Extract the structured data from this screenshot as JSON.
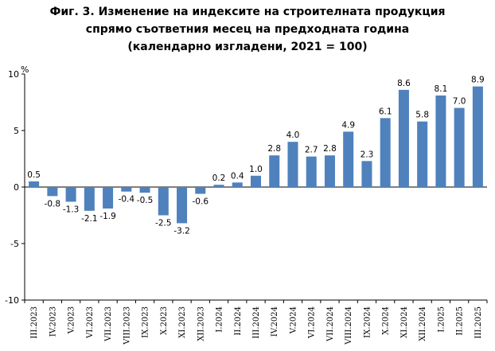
{
  "chart_data": {
    "type": "bar",
    "title_lines": [
      "Фиг. 3. Изменение на индексите на строителната продукция",
      "спрямо съответния месец на предходната година",
      "(календарно изгладени, 2021 = 100)"
    ],
    "ylabel": "%",
    "ylim": [
      -10,
      10
    ],
    "yticks": [
      "10",
      "5",
      "0",
      "-5",
      "-10"
    ],
    "ytick_values": [
      10,
      5,
      0,
      -5,
      -10
    ],
    "grid": false,
    "bar_color": "#4f81bd",
    "categories": [
      "III.2023",
      "IV.2023",
      "V.2023",
      "VI.2023",
      "VII.2023",
      "VIII.2023",
      "IX.2023",
      "X.2023",
      "XI.2023",
      "XII.2023",
      "I.2024",
      "II.2024",
      "III.2024",
      "IV.2024",
      "V.2024",
      "VI.2024",
      "VII.2024",
      "VIII.2024",
      "IX.2024",
      "X.2024",
      "XI.2024",
      "XII.2024",
      "I.2025",
      "II.2025",
      "III.2025"
    ],
    "values": [
      0.5,
      -0.8,
      -1.3,
      -2.1,
      -1.9,
      -0.4,
      -0.5,
      -2.5,
      -3.2,
      -0.6,
      0.2,
      0.4,
      1.0,
      2.8,
      4.0,
      2.7,
      2.8,
      4.9,
      2.3,
      6.1,
      8.6,
      5.8,
      8.1,
      7.0,
      8.9
    ],
    "data_labels": [
      "0.5",
      "-0.8",
      "-1.3",
      "-2.1",
      "-1.9",
      "-0.4",
      "-0.5",
      "-2.5",
      "-3.2",
      "-0.6",
      "0.2",
      "0.4",
      "1.0",
      "2.8",
      "4.0",
      "2.7",
      "2.8",
      "4.9",
      "2.3",
      "6.1",
      "8.6",
      "5.8",
      "8.1",
      "7.0",
      "8.9"
    ]
  }
}
